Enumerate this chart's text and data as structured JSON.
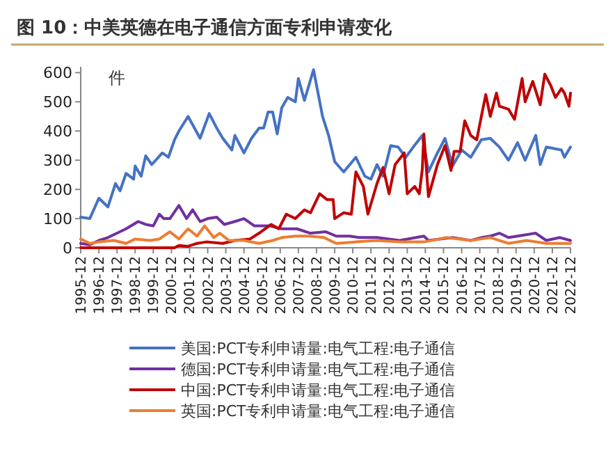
{
  "chart_data": {
    "type": "line",
    "title": "图 10：中美英德在电子通信方面专利申请变化",
    "ylabel": "件",
    "xlim": [
      "1995-12",
      "2022-12"
    ],
    "xticks": [
      "1995-12",
      "1996-12",
      "1997-12",
      "1998-12",
      "1999-12",
      "2000-12",
      "2001-12",
      "2002-12",
      "2003-12",
      "2004-12",
      "2005-12",
      "2006-12",
      "2007-12",
      "2008-12",
      "2009-12",
      "2010-12",
      "2011-12",
      "2012-12",
      "2013-12",
      "2014-12",
      "2015-12",
      "2016-12",
      "2017-12",
      "2018-12",
      "2019-12",
      "2020-12",
      "2021-12",
      "2022-12"
    ],
    "ylim": [
      0,
      620
    ],
    "yticks": [
      0,
      100,
      200,
      300,
      400,
      500,
      600
    ],
    "grid": false,
    "legend": "bottom",
    "marker": "none",
    "line_style": "solid",
    "series": [
      {
        "name": "美国:PCT专利申请量:电气工程:电子通信",
        "color": "#4472c4",
        "x": [
          "1995-12",
          "1996-06",
          "1996-12",
          "1997-06",
          "1997-11",
          "1998-02",
          "1998-06",
          "1998-11",
          "1998-12",
          "1999-04",
          "1999-07",
          "1999-11",
          "2000-06",
          "2000-10",
          "2001-02",
          "2001-05",
          "2001-11",
          "2002-07",
          "2003-01",
          "2003-06",
          "2003-10",
          "2004-04",
          "2004-06",
          "2004-12",
          "2005-05",
          "2005-10",
          "2006-01",
          "2006-04",
          "2006-07",
          "2006-10",
          "2007-01",
          "2007-05",
          "2007-10",
          "2007-12",
          "2008-04",
          "2008-10",
          "2009-04",
          "2009-08",
          "2009-12",
          "2010-06",
          "2011-02",
          "2011-08",
          "2011-12",
          "2012-04",
          "2012-08",
          "2013-01",
          "2013-06",
          "2013-11",
          "2014-04",
          "2014-10",
          "2015-02",
          "2015-08",
          "2016-01",
          "2016-06",
          "2016-12",
          "2017-06",
          "2018-01",
          "2018-07",
          "2019-01",
          "2019-07",
          "2020-01",
          "2020-06",
          "2021-01",
          "2021-04",
          "2021-08",
          "2022-06",
          "2022-08",
          "2022-12"
        ],
        "values": [
          105,
          100,
          170,
          140,
          220,
          195,
          255,
          235,
          280,
          245,
          315,
          285,
          325,
          310,
          370,
          400,
          450,
          375,
          460,
          410,
          375,
          335,
          385,
          325,
          375,
          410,
          410,
          465,
          465,
          390,
          480,
          515,
          500,
          580,
          505,
          610,
          450,
          385,
          295,
          260,
          310,
          245,
          235,
          285,
          245,
          350,
          345,
          310,
          345,
          385,
          260,
          325,
          375,
          280,
          335,
          310,
          370,
          375,
          345,
          300,
          360,
          300,
          385,
          285,
          345,
          335,
          310,
          345
        ]
      },
      {
        "name": "德国:PCT专利申请量:电气工程:电子通信",
        "color": "#7030a0",
        "x": [
          "1995-12",
          "1996-06",
          "1996-12",
          "1997-06",
          "1997-12",
          "1998-06",
          "1999-02",
          "1999-07",
          "1999-12",
          "2000-04",
          "2000-07",
          "2000-11",
          "2001-05",
          "2001-10",
          "2002-02",
          "2002-07",
          "2002-12",
          "2003-06",
          "2003-11",
          "2004-06",
          "2004-12",
          "2005-07",
          "2006-05",
          "2007-01",
          "2007-11",
          "2008-08",
          "2009-06",
          "2010-01",
          "2010-10",
          "2011-04",
          "2012-04",
          "2013-07",
          "2014-11",
          "2015-02",
          "2016-06",
          "2017-06",
          "2018-01",
          "2018-07",
          "2019-01",
          "2019-07",
          "2020-01",
          "2021-01",
          "2021-08",
          "2022-05",
          "2022-12"
        ],
        "values": [
          15,
          10,
          25,
          35,
          50,
          65,
          90,
          80,
          75,
          115,
          100,
          100,
          145,
          100,
          130,
          90,
          100,
          105,
          80,
          90,
          100,
          75,
          75,
          65,
          65,
          50,
          55,
          40,
          40,
          35,
          35,
          25,
          40,
          25,
          35,
          25,
          35,
          40,
          50,
          35,
          40,
          50,
          25,
          35,
          25
        ]
      },
      {
        "name": "中国:PCT专利申请量:电气工程:电子通信",
        "color": "#c00000",
        "x": [
          "1995-12",
          "2001-02",
          "2001-05",
          "2001-11",
          "2002-05",
          "2002-11",
          "2003-10",
          "2004-06",
          "2005-04",
          "2005-10",
          "2006-06",
          "2006-11",
          "2007-04",
          "2007-10",
          "2008-04",
          "2008-08",
          "2009-02",
          "2009-07",
          "2009-11",
          "2009-12",
          "2010-06",
          "2010-11",
          "2011-02",
          "2011-07",
          "2011-10",
          "2012-04",
          "2012-08",
          "2012-12",
          "2013-04",
          "2013-10",
          "2013-12",
          "2014-05",
          "2014-08",
          "2014-10",
          "2014-11",
          "2015-02",
          "2015-08",
          "2016-01",
          "2016-05",
          "2016-07",
          "2016-11",
          "2017-02",
          "2017-06",
          "2017-10",
          "2018-01",
          "2018-04",
          "2018-07",
          "2018-11",
          "2019-01",
          "2019-07",
          "2019-11",
          "2020-04",
          "2020-06",
          "2020-11",
          "2021-04",
          "2021-07",
          "2021-11",
          "2022-02",
          "2022-06",
          "2022-08",
          "2022-11",
          "2022-12"
        ],
        "values": [
          0,
          0,
          8,
          5,
          15,
          20,
          15,
          25,
          30,
          50,
          80,
          65,
          115,
          100,
          130,
          120,
          185,
          165,
          165,
          100,
          120,
          115,
          260,
          210,
          115,
          220,
          275,
          185,
          285,
          325,
          185,
          210,
          185,
          270,
          390,
          175,
          285,
          350,
          265,
          330,
          330,
          435,
          385,
          370,
          450,
          525,
          450,
          530,
          485,
          475,
          440,
          580,
          500,
          570,
          490,
          595,
          555,
          515,
          545,
          530,
          485,
          530
        ]
      },
      {
        "name": "英国:PCT专利申请量:电气工程:电子通信",
        "color": "#ed7d31",
        "x": [
          "1995-12",
          "1996-06",
          "1996-12",
          "1997-10",
          "1998-06",
          "1998-12",
          "1999-10",
          "2000-04",
          "2000-11",
          "2001-05",
          "2001-11",
          "2002-05",
          "2002-10",
          "2003-04",
          "2003-08",
          "2004-02",
          "2004-12",
          "2005-10",
          "2006-07",
          "2007-01",
          "2007-10",
          "2008-07",
          "2009-05",
          "2010-01",
          "2011-02",
          "2012-04",
          "2013-07",
          "2014-11",
          "2016-02",
          "2017-06",
          "2018-07",
          "2019-07",
          "2020-07",
          "2021-08",
          "2022-06",
          "2022-12"
        ],
        "values": [
          30,
          15,
          20,
          25,
          15,
          30,
          25,
          30,
          55,
          30,
          65,
          40,
          75,
          35,
          50,
          25,
          25,
          15,
          25,
          35,
          40,
          40,
          35,
          15,
          20,
          25,
          20,
          20,
          35,
          25,
          35,
          15,
          25,
          15,
          15,
          15
        ]
      }
    ]
  }
}
